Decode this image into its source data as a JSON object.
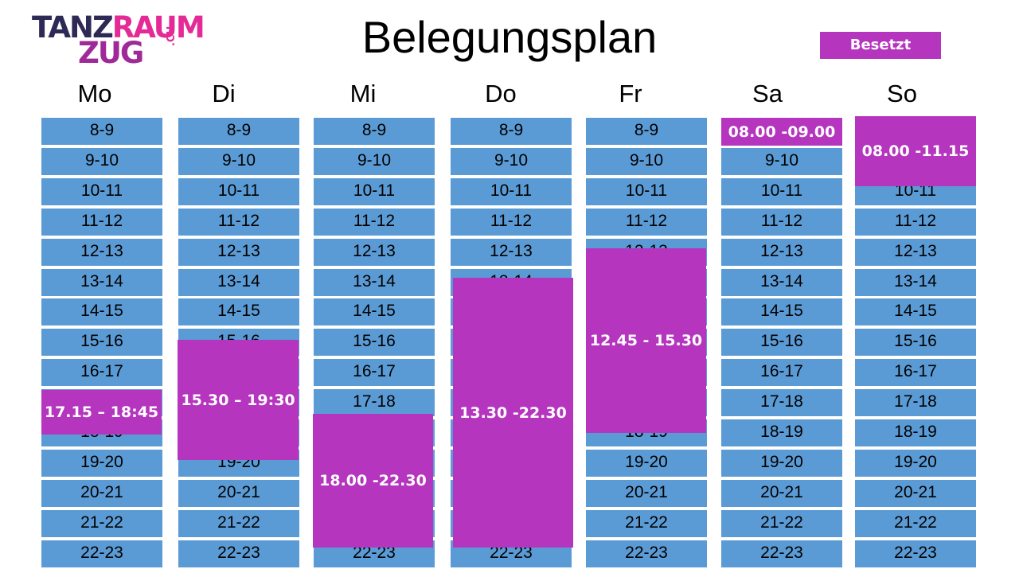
{
  "logo": {
    "line1a": "TANZ",
    "line1b": "RAUM",
    "line2": "ZUG",
    "suffix": ".CH"
  },
  "title": "Belegungsplan",
  "legend": {
    "label": "Besetzt",
    "color": "#b535bf"
  },
  "colors": {
    "free": "#5b9bd5",
    "busy": "#b535bf"
  },
  "days": [
    "Mo",
    "Di",
    "Mi",
    "Do",
    "Fr",
    "Sa",
    "So"
  ],
  "slots": [
    "8-9",
    "9-10",
    "10-11",
    "11-12",
    "12-13",
    "13-14",
    "14-15",
    "15-16",
    "16-17",
    "17-18",
    "18-19",
    "19-20",
    "20-21",
    "21-22",
    "22-23"
  ],
  "bookings": [
    {
      "day": 0,
      "label": "17.15 – 18:45"
    },
    {
      "day": 1,
      "label": "15.30 – 19:30"
    },
    {
      "day": 2,
      "label": "18.00 -22.30"
    },
    {
      "day": 3,
      "label": "13.30 -22.30"
    },
    {
      "day": 4,
      "label": "12.45 - 15.30"
    },
    {
      "day": 5,
      "label": "08.00 -09.00"
    },
    {
      "day": 6,
      "label": "08.00 -11.15"
    }
  ]
}
